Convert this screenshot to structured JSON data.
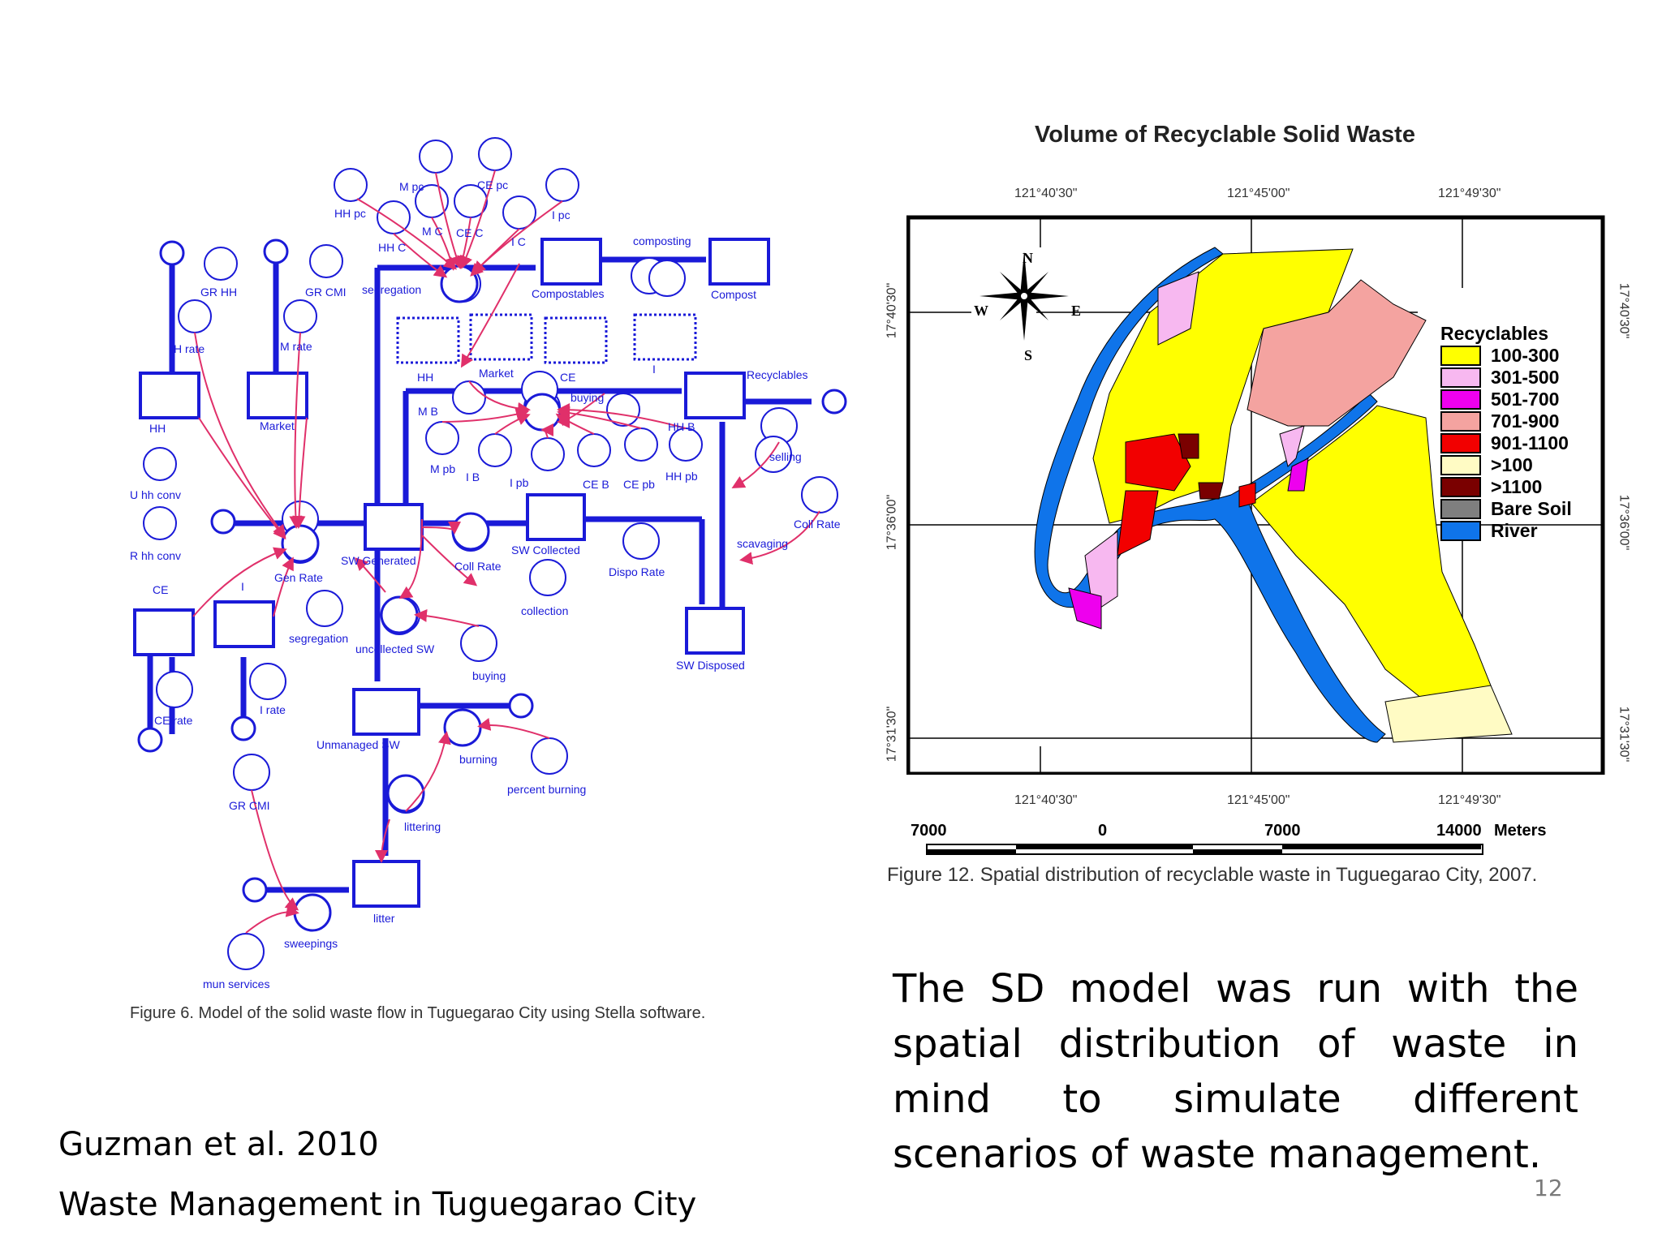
{
  "figure6": {
    "caption": "Figure 6. Model of the solid waste flow in Tuguegarao City using Stella software.",
    "stocks": [
      "HH",
      "Market",
      "CE",
      "I",
      "SW Generated",
      "SW Collected",
      "SW Disposed",
      "Compostables",
      "Compost",
      "Recyclables",
      "Unmanaged SW",
      "litter",
      "HH",
      "Market",
      "CE",
      "I"
    ],
    "flows": [
      "GR HH",
      "GR CMI",
      "HH rate",
      "M rate",
      "CE rate",
      "I rate",
      "Gen Rate",
      "Coll Rate",
      "Dispo Rate",
      "composting",
      "segregation",
      "buying",
      "selling",
      "scavaging",
      "uncollected SW",
      "burning",
      "littering",
      "sweepings",
      "collection"
    ],
    "converters": [
      "U hh conv",
      "R hh conv",
      "HH pc",
      "M pc",
      "CE pc",
      "I pc",
      "HH C",
      "M C",
      "CE C",
      "I C",
      "M B",
      "M pb",
      "I B",
      "I pb",
      "CE B",
      "CE pb",
      "HH pb",
      "HH B",
      "Coll Rate",
      "segregation",
      "buying",
      "percent burning",
      "GR CMI",
      "mun services"
    ]
  },
  "figure12": {
    "title": "Volume of Recyclable Solid Waste",
    "caption": "Figure 12. Spatial distribution of recyclable waste in Tuguegarao City, 2007.",
    "lon_labels": [
      "121°40'30\"",
      "121°45'00\"",
      "121°49'30\""
    ],
    "lat_labels": [
      "17°40'30\"",
      "17°36'00\"",
      "17°31'30\""
    ],
    "compass": [
      "N",
      "S",
      "E",
      "W"
    ],
    "legend_title": "Recyclables",
    "legend": [
      {
        "label": "100-300",
        "color": "#ffff00"
      },
      {
        "label": "301-500",
        "color": "#f7b8f0"
      },
      {
        "label": "501-700",
        "color": "#ee00ee"
      },
      {
        "label": "701-900",
        "color": "#f4a3a0"
      },
      {
        "label": "901-1100",
        "color": "#f20000"
      },
      {
        "label": ">100",
        "color": "#fffbc4"
      },
      {
        "label": ">1100",
        "color": "#7a0000"
      },
      {
        "label": "Bare Soil",
        "color": "#7f7f7f"
      },
      {
        "label": "River",
        "color": "#0f74ea"
      }
    ],
    "scale": {
      "labels": [
        "7000",
        "0",
        "7000",
        "14000"
      ],
      "unit": "Meters"
    }
  },
  "text": {
    "paragraph": "The SD model was run with the spatial distribution of waste in mind to simulate different scenarios of waste management.",
    "citation_line1": "Guzman et al. 2010",
    "citation_line2": "Waste Management in Tuguegarao City",
    "page_number": "12"
  }
}
